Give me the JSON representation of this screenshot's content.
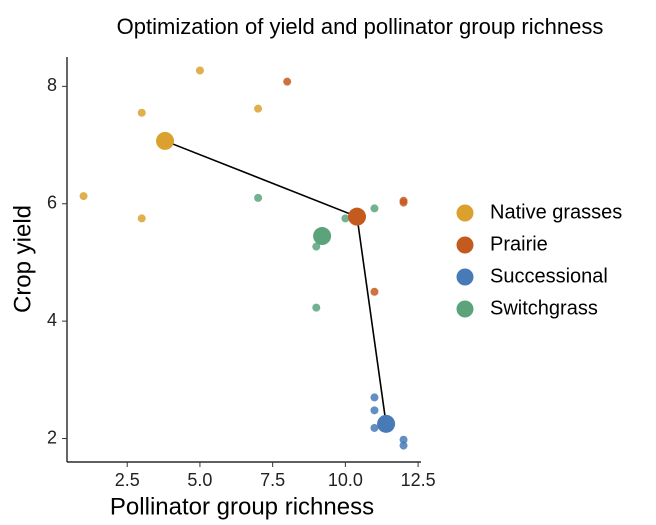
{
  "chart_data": {
    "type": "scatter",
    "title": "Optimization of yield and pollinator group richness",
    "x_label": "Pollinator group richness",
    "y_label": "Crop yield",
    "xlim": [
      0.43,
      12.6
    ],
    "ylim": [
      1.6,
      8.5
    ],
    "xticks": [
      2.5,
      {
        "value": 5,
        "label": "5.0"
      },
      7.5,
      {
        "value": 10,
        "label": "10.0"
      },
      12.5
    ],
    "yticks": [
      2,
      4,
      6,
      8
    ],
    "legend": "right",
    "series": [
      {
        "name": "Native grasses",
        "color": "#dba12f",
        "x": [
          1,
          3,
          3,
          5,
          7
        ],
        "values": [
          6.13,
          7.55,
          5.75,
          8.27,
          7.62
        ],
        "optimum": {
          "x": 3.8,
          "y": 7.07
        }
      },
      {
        "name": "Prairie",
        "color": "#c55a1f",
        "x": [
          8,
          11,
          12,
          12
        ],
        "values": [
          8.08,
          4.5,
          6.05,
          6.02
        ],
        "optimum": {
          "x": 10.4,
          "y": 5.78
        }
      },
      {
        "name": "Successional",
        "color": "#477ab6",
        "x": [
          11,
          11,
          11,
          12,
          12
        ],
        "values": [
          2.7,
          2.48,
          2.18,
          1.98,
          1.88
        ],
        "optimum": {
          "x": 11.4,
          "y": 2.25
        }
      },
      {
        "name": "Switchgrass",
        "color": "#5ba37b",
        "x": [
          7,
          9,
          9,
          10,
          11
        ],
        "values": [
          6.1,
          4.23,
          5.27,
          5.75,
          5.92
        ],
        "optimum": {
          "x": 9.2,
          "y": 5.45
        }
      }
    ],
    "frontier": {
      "x": [
        3.8,
        10.4,
        11.4
      ],
      "y": [
        7.07,
        5.78,
        2.25
      ]
    }
  }
}
